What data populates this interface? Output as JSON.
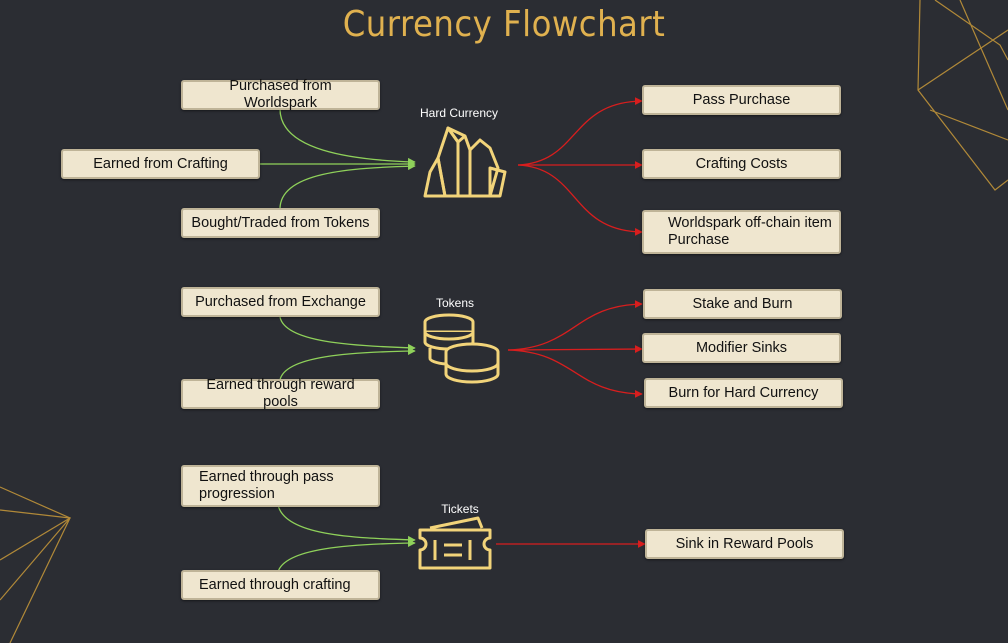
{
  "title": "Currency Flowchart",
  "colors": {
    "background": "#2b2d33",
    "title": "#e0b14f",
    "node_fill": "#efe6cf",
    "inflow_arrow": "#8fd15a",
    "outflow_arrow": "#d81e1e",
    "icon": "#f2d47a"
  },
  "groups": [
    {
      "label": "Hard Currency",
      "icon": "crystal-icon",
      "sources": [
        "Purchased from Worldspark",
        "Earned from Crafting",
        "Bought/Traded from Tokens"
      ],
      "sinks": [
        "Pass Purchase",
        "Crafting Costs",
        "Worldspark off-chain item Purchase"
      ]
    },
    {
      "label": "Tokens",
      "icon": "coins-icon",
      "sources": [
        "Purchased from Exchange",
        "Earned through reward pools"
      ],
      "sinks": [
        "Stake and Burn",
        "Modifier Sinks",
        "Burn for Hard Currency"
      ]
    },
    {
      "label": "Tickets",
      "icon": "ticket-icon",
      "sources": [
        "Earned through pass progression",
        "Earned through crafting"
      ],
      "sinks": [
        "Sink in Reward Pools"
      ]
    }
  ]
}
